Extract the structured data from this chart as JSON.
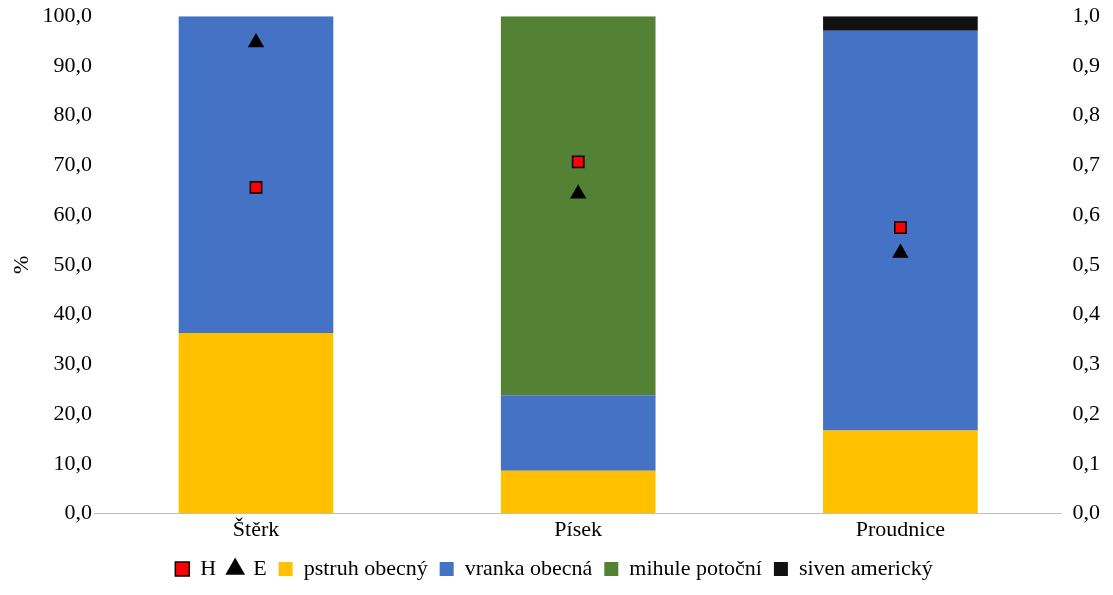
{
  "chart_data": {
    "type": "bar",
    "stacked": true,
    "categories": [
      "Štěrk",
      "Písek",
      "Proudnice"
    ],
    "ylabel": "%",
    "ylim": [
      0,
      100
    ],
    "yticks": [
      {
        "value": 0,
        "label": "0,0"
      },
      {
        "value": 10,
        "label": "10,0"
      },
      {
        "value": 20,
        "label": "20,0"
      },
      {
        "value": 30,
        "label": "30,0"
      },
      {
        "value": 40,
        "label": "40,0"
      },
      {
        "value": 50,
        "label": "50,0"
      },
      {
        "value": 60,
        "label": "60,0"
      },
      {
        "value": 70,
        "label": "70,0"
      },
      {
        "value": 80,
        "label": "80,0"
      },
      {
        "value": 90,
        "label": "90,0"
      },
      {
        "value": 100,
        "label": "100,0"
      }
    ],
    "y2lim": [
      0,
      1
    ],
    "y2ticks": [
      {
        "value": 0,
        "label": "0,0"
      },
      {
        "value": 0.1,
        "label": "0,1"
      },
      {
        "value": 0.2,
        "label": "0,2"
      },
      {
        "value": 0.3,
        "label": "0,3"
      },
      {
        "value": 0.4,
        "label": "0,4"
      },
      {
        "value": 0.5,
        "label": "0,5"
      },
      {
        "value": 0.6,
        "label": "0,6"
      },
      {
        "value": 0.7,
        "label": "0,7"
      },
      {
        "value": 0.8,
        "label": "0,8"
      },
      {
        "value": 0.9,
        "label": "0,9"
      },
      {
        "value": 1,
        "label": "1,0"
      }
    ],
    "grid": false,
    "legend": "bottom",
    "series": [
      {
        "name": "pstruh obecný",
        "color": "#ffc000",
        "values": [
          36.3,
          8.6,
          16.7
        ]
      },
      {
        "name": "vranka obecná",
        "color": "#4472c4",
        "values": [
          63.7,
          15.2,
          80.4
        ]
      },
      {
        "name": "mihule potoční",
        "color": "#548235",
        "values": [
          0,
          76.2,
          0
        ]
      },
      {
        "name": "siven americký",
        "color": "#111111",
        "values": [
          0,
          0,
          2.9
        ]
      },
      {
        "name": "H",
        "type": "scatter",
        "axis": "y2",
        "marker": "square",
        "color": "#ff0000",
        "values": [
          0.656,
          0.707,
          0.575
        ]
      },
      {
        "name": "E",
        "type": "scatter",
        "axis": "y2",
        "marker": "triangle",
        "color": "#000000",
        "values": [
          0.947,
          0.643,
          0.524
        ]
      }
    ]
  }
}
